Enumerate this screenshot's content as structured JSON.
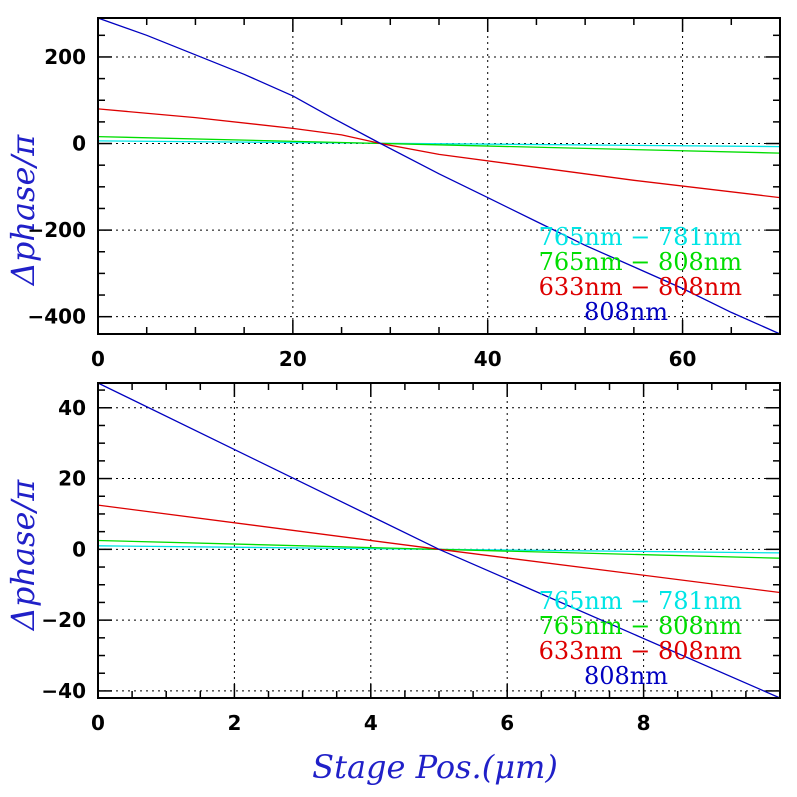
{
  "colors": {
    "frame": "#000000",
    "grid": "#000000",
    "axis_label": "#2020c8"
  },
  "chart_data": [
    {
      "type": "line",
      "title": "",
      "xlabel": "",
      "ylabel": "Δphase/π",
      "xlim": [
        0,
        70
      ],
      "ylim": [
        -440,
        290
      ],
      "xticks": [
        0,
        20,
        40,
        60
      ],
      "yticks": [
        -400,
        -200,
        0,
        200
      ],
      "xtick_labels": [
        "0",
        "20",
        "40",
        "60"
      ],
      "ytick_labels": [
        "−400",
        "−200",
        "0",
        "200"
      ],
      "grid": true,
      "legend_position": "bottom-right",
      "series": [
        {
          "name": "765nm − 781nm",
          "color": "#00e5e5",
          "x": [
            0,
            70
          ],
          "y": [
            6,
            -7
          ]
        },
        {
          "name": "765nm − 808nm",
          "color": "#00dd00",
          "x": [
            0,
            70
          ],
          "y": [
            16,
            -22
          ]
        },
        {
          "name": "633nm − 808nm",
          "color": "#dd0000",
          "x": [
            0,
            10,
            20,
            25,
            29,
            35,
            45,
            55,
            70
          ],
          "y": [
            80,
            60,
            35,
            20,
            0,
            -25,
            -55,
            -85,
            -125
          ]
        },
        {
          "name": "808nm",
          "color": "#0000c0",
          "x": [
            0,
            5,
            10,
            15,
            20,
            24,
            29,
            35,
            40,
            45,
            50,
            55,
            60,
            65,
            70
          ],
          "y": [
            290,
            250,
            205,
            160,
            110,
            60,
            0,
            -70,
            -125,
            -180,
            -235,
            -285,
            -335,
            -390,
            -440
          ]
        }
      ]
    },
    {
      "type": "line",
      "title": "",
      "xlabel": "Stage Pos.(μm)",
      "ylabel": "Δphase/π",
      "xlim": [
        0,
        10
      ],
      "ylim": [
        -42,
        47
      ],
      "xticks": [
        0,
        2,
        4,
        6,
        8
      ],
      "yticks": [
        -40,
        -20,
        0,
        20,
        40
      ],
      "xtick_labels": [
        "0",
        "2",
        "4",
        "6",
        "8"
      ],
      "ytick_labels": [
        "−40",
        "−20",
        "0",
        "20",
        "40"
      ],
      "grid": true,
      "legend_position": "bottom-right",
      "series": [
        {
          "name": "765nm − 781nm",
          "color": "#00e5e5",
          "x": [
            0,
            10
          ],
          "y": [
            1,
            -1
          ]
        },
        {
          "name": "765nm − 808nm",
          "color": "#00dd00",
          "x": [
            0,
            10
          ],
          "y": [
            2.5,
            -2.5
          ]
        },
        {
          "name": "633nm − 808nm",
          "color": "#dd0000",
          "x": [
            0,
            5,
            10
          ],
          "y": [
            12.5,
            0,
            -12.2
          ]
        },
        {
          "name": "808nm",
          "color": "#0000c0",
          "x": [
            0,
            5,
            10
          ],
          "y": [
            47,
            0,
            -42
          ]
        }
      ]
    }
  ]
}
